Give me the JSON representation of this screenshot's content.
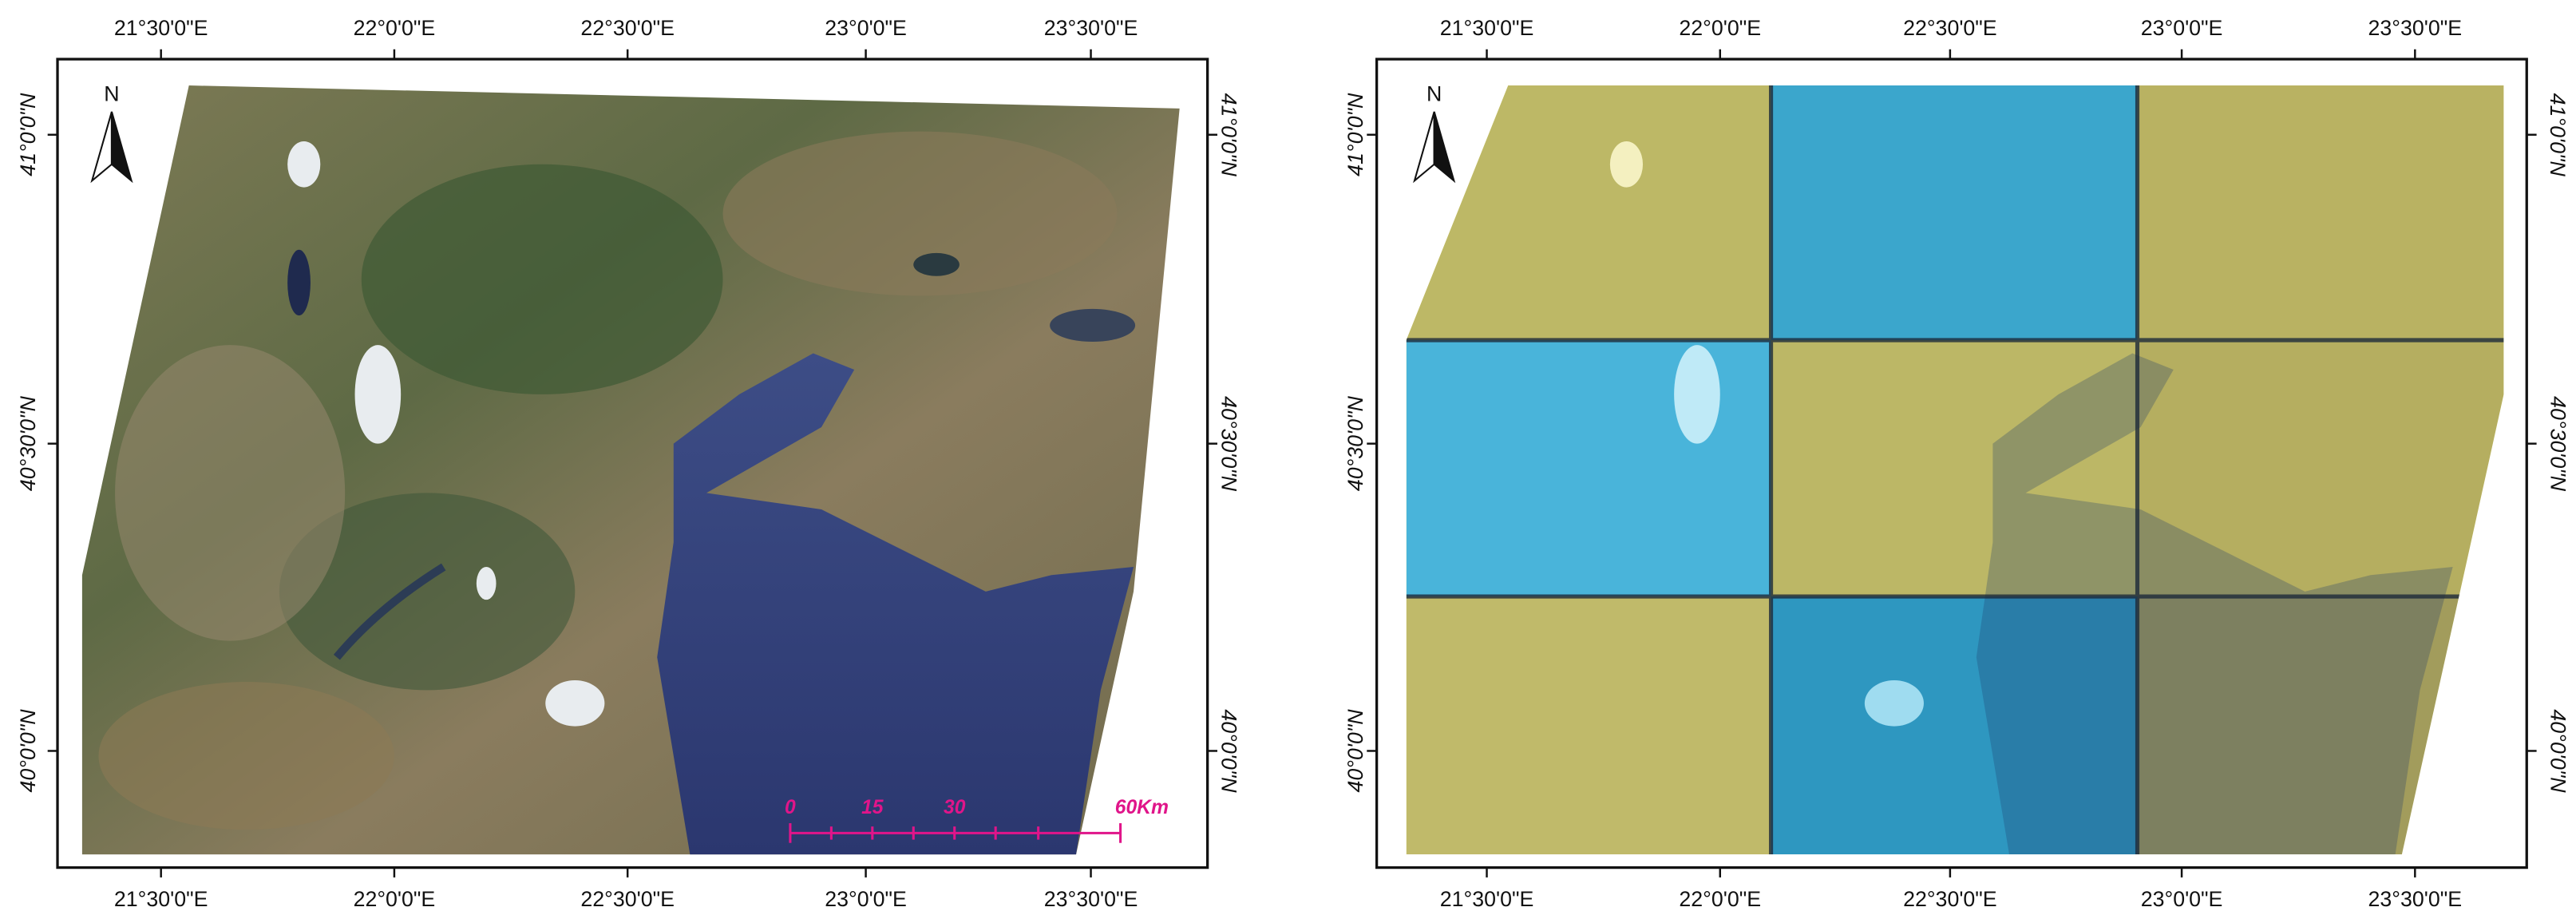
{
  "panels": [
    {
      "top_labels": [
        "21°30'0\"E",
        "22°0'0\"E",
        "22°30'0\"E",
        "23°0'0\"E",
        "23°30'0\"E"
      ],
      "bottom_labels": [
        "21°30'0\"E",
        "22°0'0\"E",
        "22°30'0\"E",
        "23°0'0\"E",
        "23°30'0\"E"
      ],
      "left_labels": [
        "41°0'0\"N",
        "40°30'0\"N",
        "40°0'0\"N"
      ],
      "right_labels": [
        "41°0'0\"N",
        "40°30'0\"N",
        "40°0'0\"N"
      ],
      "north": "N",
      "scale_bar": [
        "0",
        "15",
        "30",
        "60Km"
      ]
    },
    {
      "top_labels": [
        "21°30'0\"E",
        "22°0'0\"E",
        "22°30'0\"E",
        "23°0'0\"E",
        "23°30'0\"E"
      ],
      "bottom_labels": [
        "21°30'0\"E",
        "22°0'0\"E",
        "22°30'0\"E",
        "23°0'0\"E",
        "23°30'0\"E"
      ],
      "left_labels": [
        "41°0'0\"N",
        "40°30'0\"N",
        "40°0'0\"N"
      ],
      "right_labels": [
        "41°0'0\"N",
        "40°30'0\"N",
        "40°0'0\"N"
      ],
      "north": "N"
    }
  ]
}
